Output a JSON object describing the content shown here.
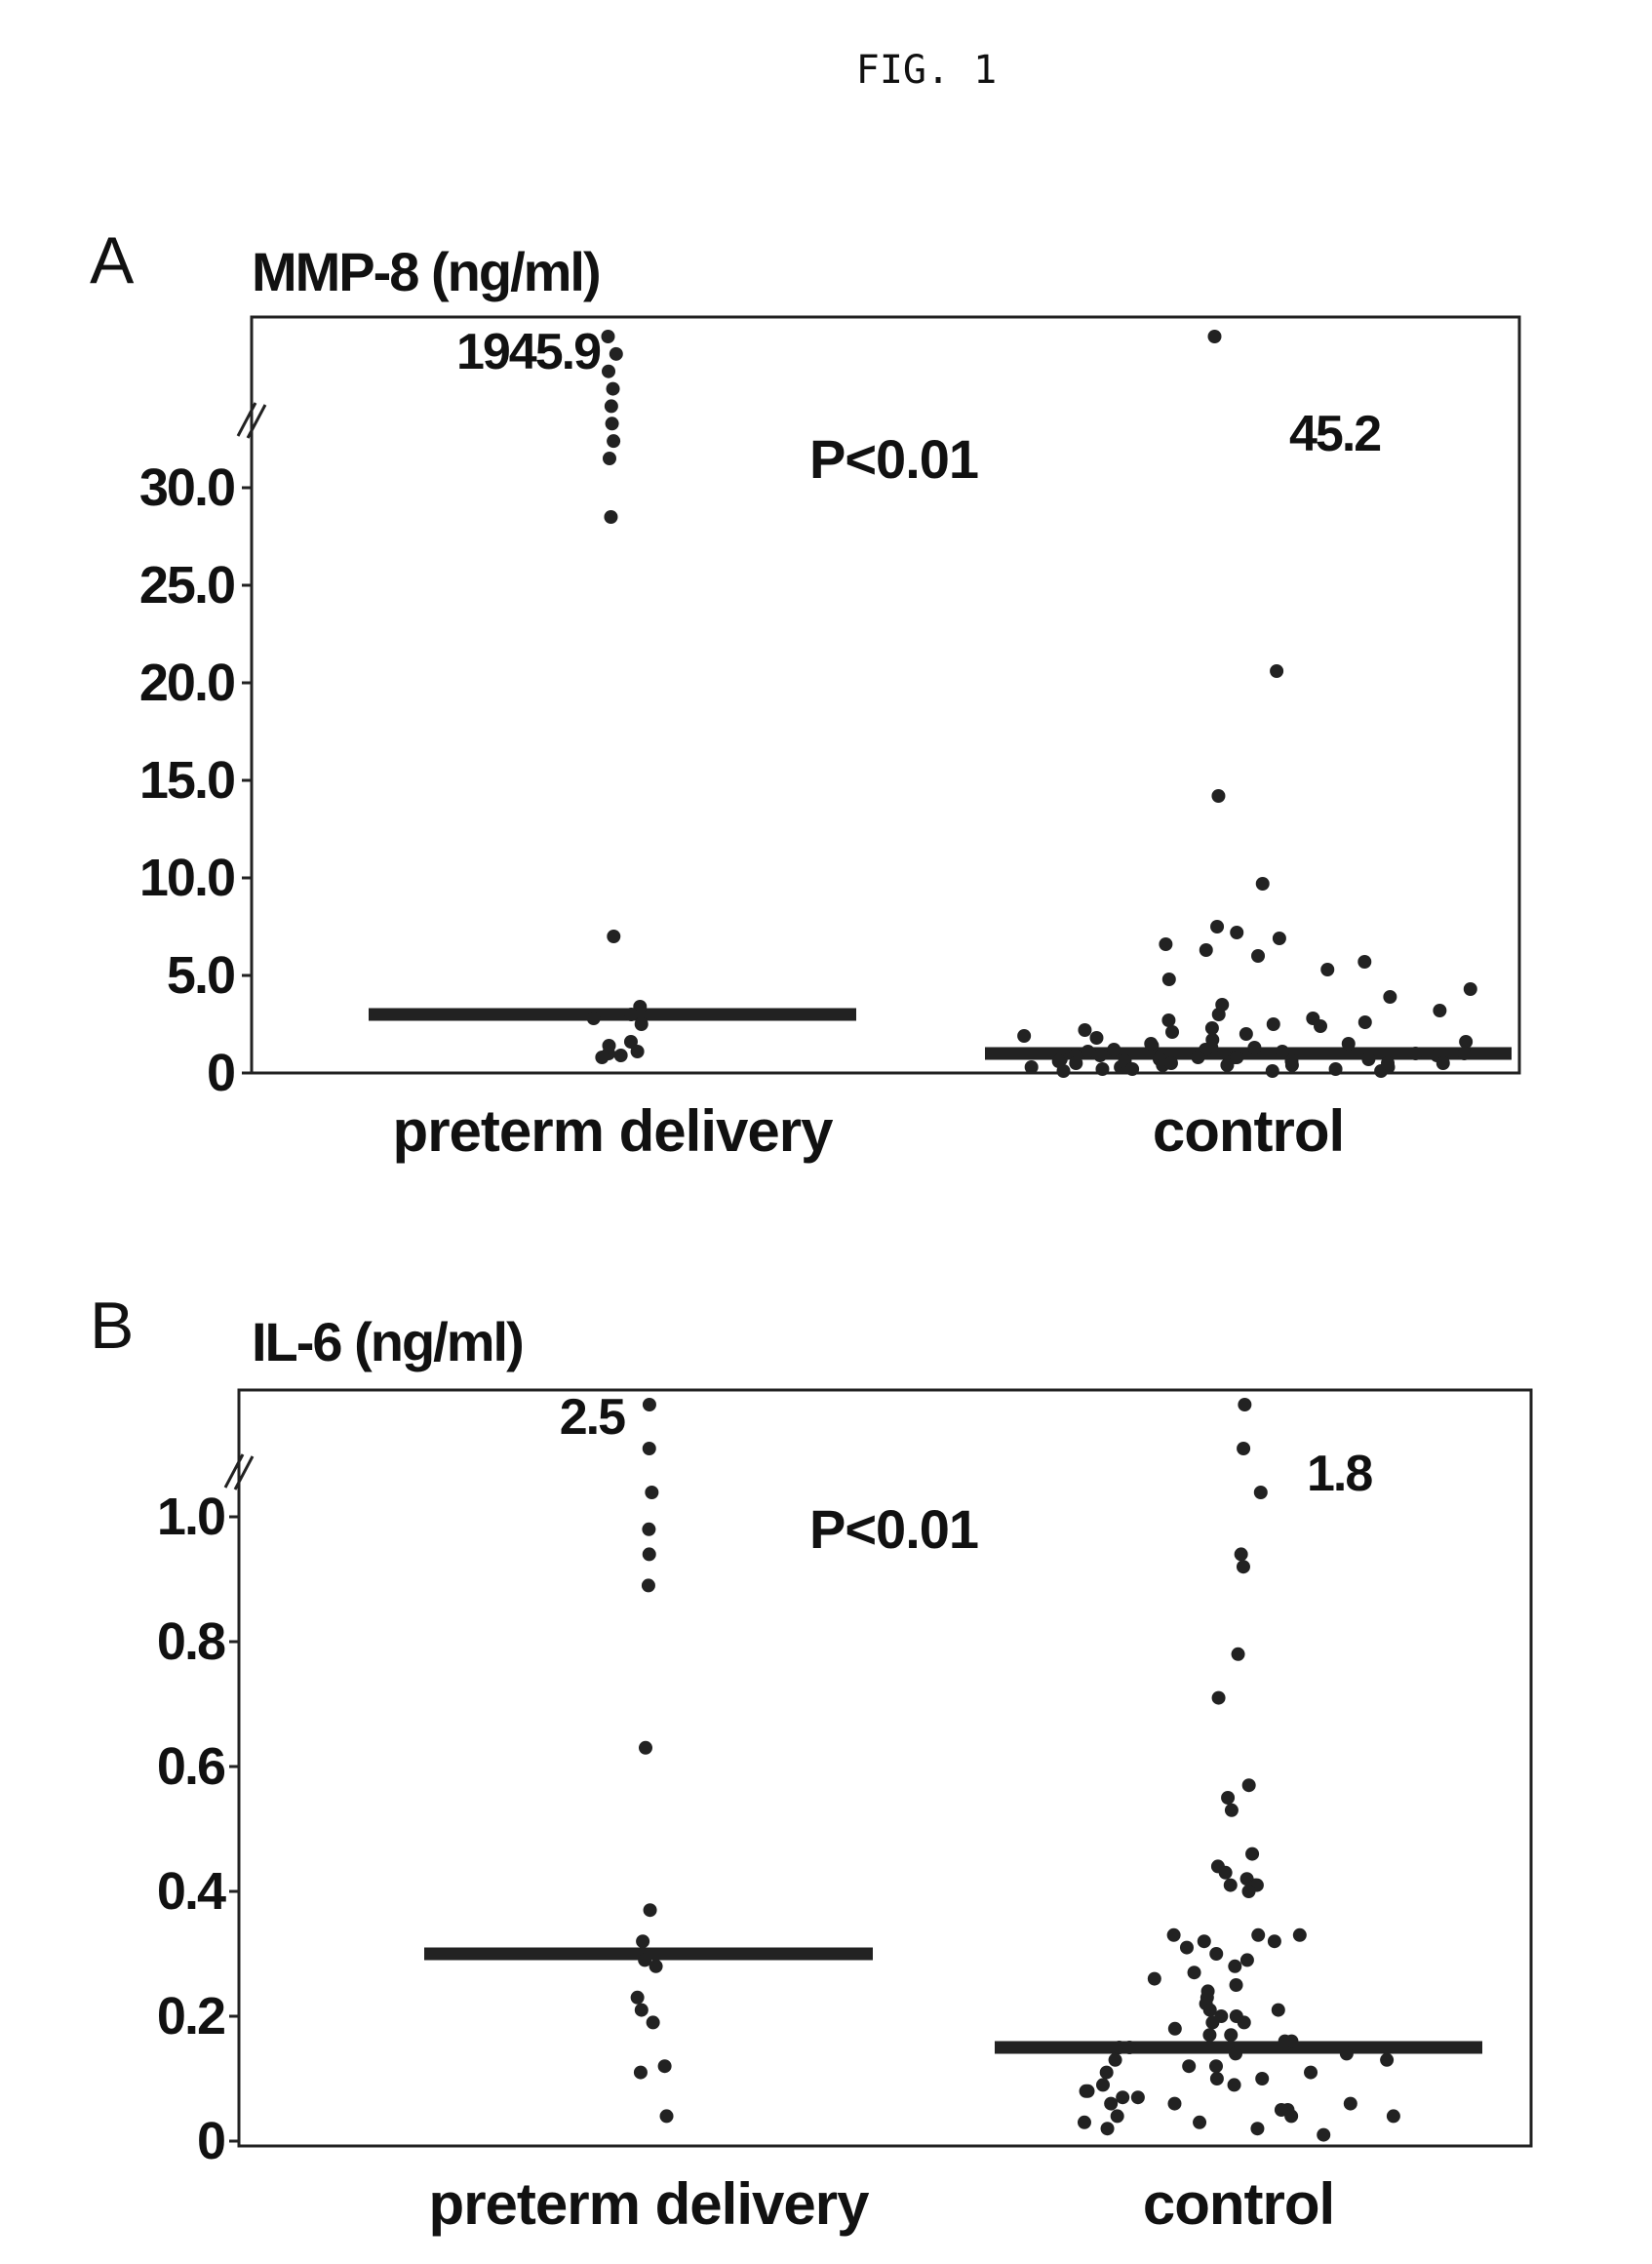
{
  "figure_title": "FIG. 1",
  "panels": [
    {
      "letter": "A",
      "ylabel": "MMP-8 (ng/ml)",
      "p_value": "P<0.01"
    },
    {
      "letter": "B",
      "ylabel": "IL-6 (ng/ml)",
      "p_value": "P<0.01"
    }
  ],
  "chart_data": [
    {
      "type": "scatter",
      "title": "MMP-8 (ng/ml)",
      "ylabel": "MMP-8 (ng/ml)",
      "xlabel": "",
      "categories": [
        "preterm delivery",
        "control"
      ],
      "y_ticks": [
        "30.0",
        "25.0",
        "20.0",
        "15.0",
        "10.0",
        "5.0",
        "0"
      ],
      "ylim": [
        0,
        30
      ],
      "y_axis_break": "above 30.0",
      "grid": false,
      "annotations": {
        "p_value": "P<0.01",
        "max_labels": [
          "1945.9",
          "45.2"
        ]
      },
      "medians": [
        3.0,
        1.0
      ],
      "series": [
        {
          "category": "preterm delivery",
          "values": [
            1945.9,
            60,
            52,
            48,
            45,
            42,
            38,
            35,
            28.5,
            7.0,
            3.4,
            3.0,
            2.8,
            2.5,
            1.6,
            1.4,
            1.1,
            1.0,
            0.9,
            0.8
          ]
        },
        {
          "category": "control",
          "values": [
            45.2,
            20.6,
            14.2,
            9.7,
            7.5,
            7.2,
            6.9,
            6.6,
            6.3,
            6.0,
            5.7,
            5.3,
            4.8,
            4.3,
            3.9,
            3.5,
            3.2,
            3.0,
            2.8,
            2.7,
            2.6,
            2.5,
            2.4,
            2.3,
            2.2,
            2.1,
            2.0,
            1.9,
            1.8,
            1.7,
            1.6,
            1.5,
            1.4,
            1.3,
            1.2,
            1.1,
            1.0,
            0.9,
            0.8,
            0.7,
            0.6,
            0.5,
            0.4,
            0.3,
            0.2,
            0.1,
            1.5,
            1.3,
            1.1,
            0.9,
            0.7,
            0.5,
            0.3,
            0.1,
            1.2,
            1.0,
            0.8,
            0.6,
            0.4,
            0.2,
            0.9,
            0.7,
            0.5,
            0.3,
            0.1,
            0.6,
            0.4,
            0.2,
            0.8,
            0.5
          ]
        }
      ]
    },
    {
      "type": "scatter",
      "title": "IL-6 (ng/ml)",
      "ylabel": "IL-6 (ng/ml)",
      "xlabel": "",
      "categories": [
        "preterm delivery",
        "control"
      ],
      "y_ticks": [
        "1.0",
        "0.8",
        "0.6",
        "0.4",
        "0.2",
        "0"
      ],
      "ylim": [
        0,
        1.0
      ],
      "y_axis_break": "above 1.0",
      "grid": false,
      "annotations": {
        "p_value": "P<0.01",
        "max_labels": [
          "2.5",
          "1.8"
        ]
      },
      "medians": [
        0.3,
        0.15
      ],
      "series": [
        {
          "category": "preterm delivery",
          "values": [
            2.5,
            1.3,
            1.2,
            0.98,
            0.94,
            0.89,
            0.63,
            0.37,
            0.32,
            0.29,
            0.28,
            0.23,
            0.21,
            0.19,
            0.12,
            0.11,
            0.04
          ]
        },
        {
          "category": "control",
          "values": [
            1.8,
            1.4,
            1.3,
            0.94,
            0.92,
            0.78,
            0.71,
            0.57,
            0.55,
            0.53,
            0.46,
            0.44,
            0.43,
            0.42,
            0.41,
            0.41,
            0.41,
            0.4,
            0.33,
            0.33,
            0.33,
            0.32,
            0.32,
            0.31,
            0.3,
            0.29,
            0.28,
            0.27,
            0.26,
            0.25,
            0.24,
            0.23,
            0.22,
            0.21,
            0.21,
            0.2,
            0.2,
            0.19,
            0.19,
            0.18,
            0.17,
            0.17,
            0.16,
            0.16,
            0.15,
            0.15,
            0.14,
            0.14,
            0.13,
            0.13,
            0.12,
            0.12,
            0.11,
            0.11,
            0.1,
            0.1,
            0.09,
            0.09,
            0.08,
            0.08,
            0.07,
            0.07,
            0.06,
            0.06,
            0.05,
            0.05,
            0.04,
            0.04,
            0.03,
            0.03,
            0.02,
            0.02,
            0.01,
            0.06,
            0.04
          ]
        }
      ]
    }
  ]
}
